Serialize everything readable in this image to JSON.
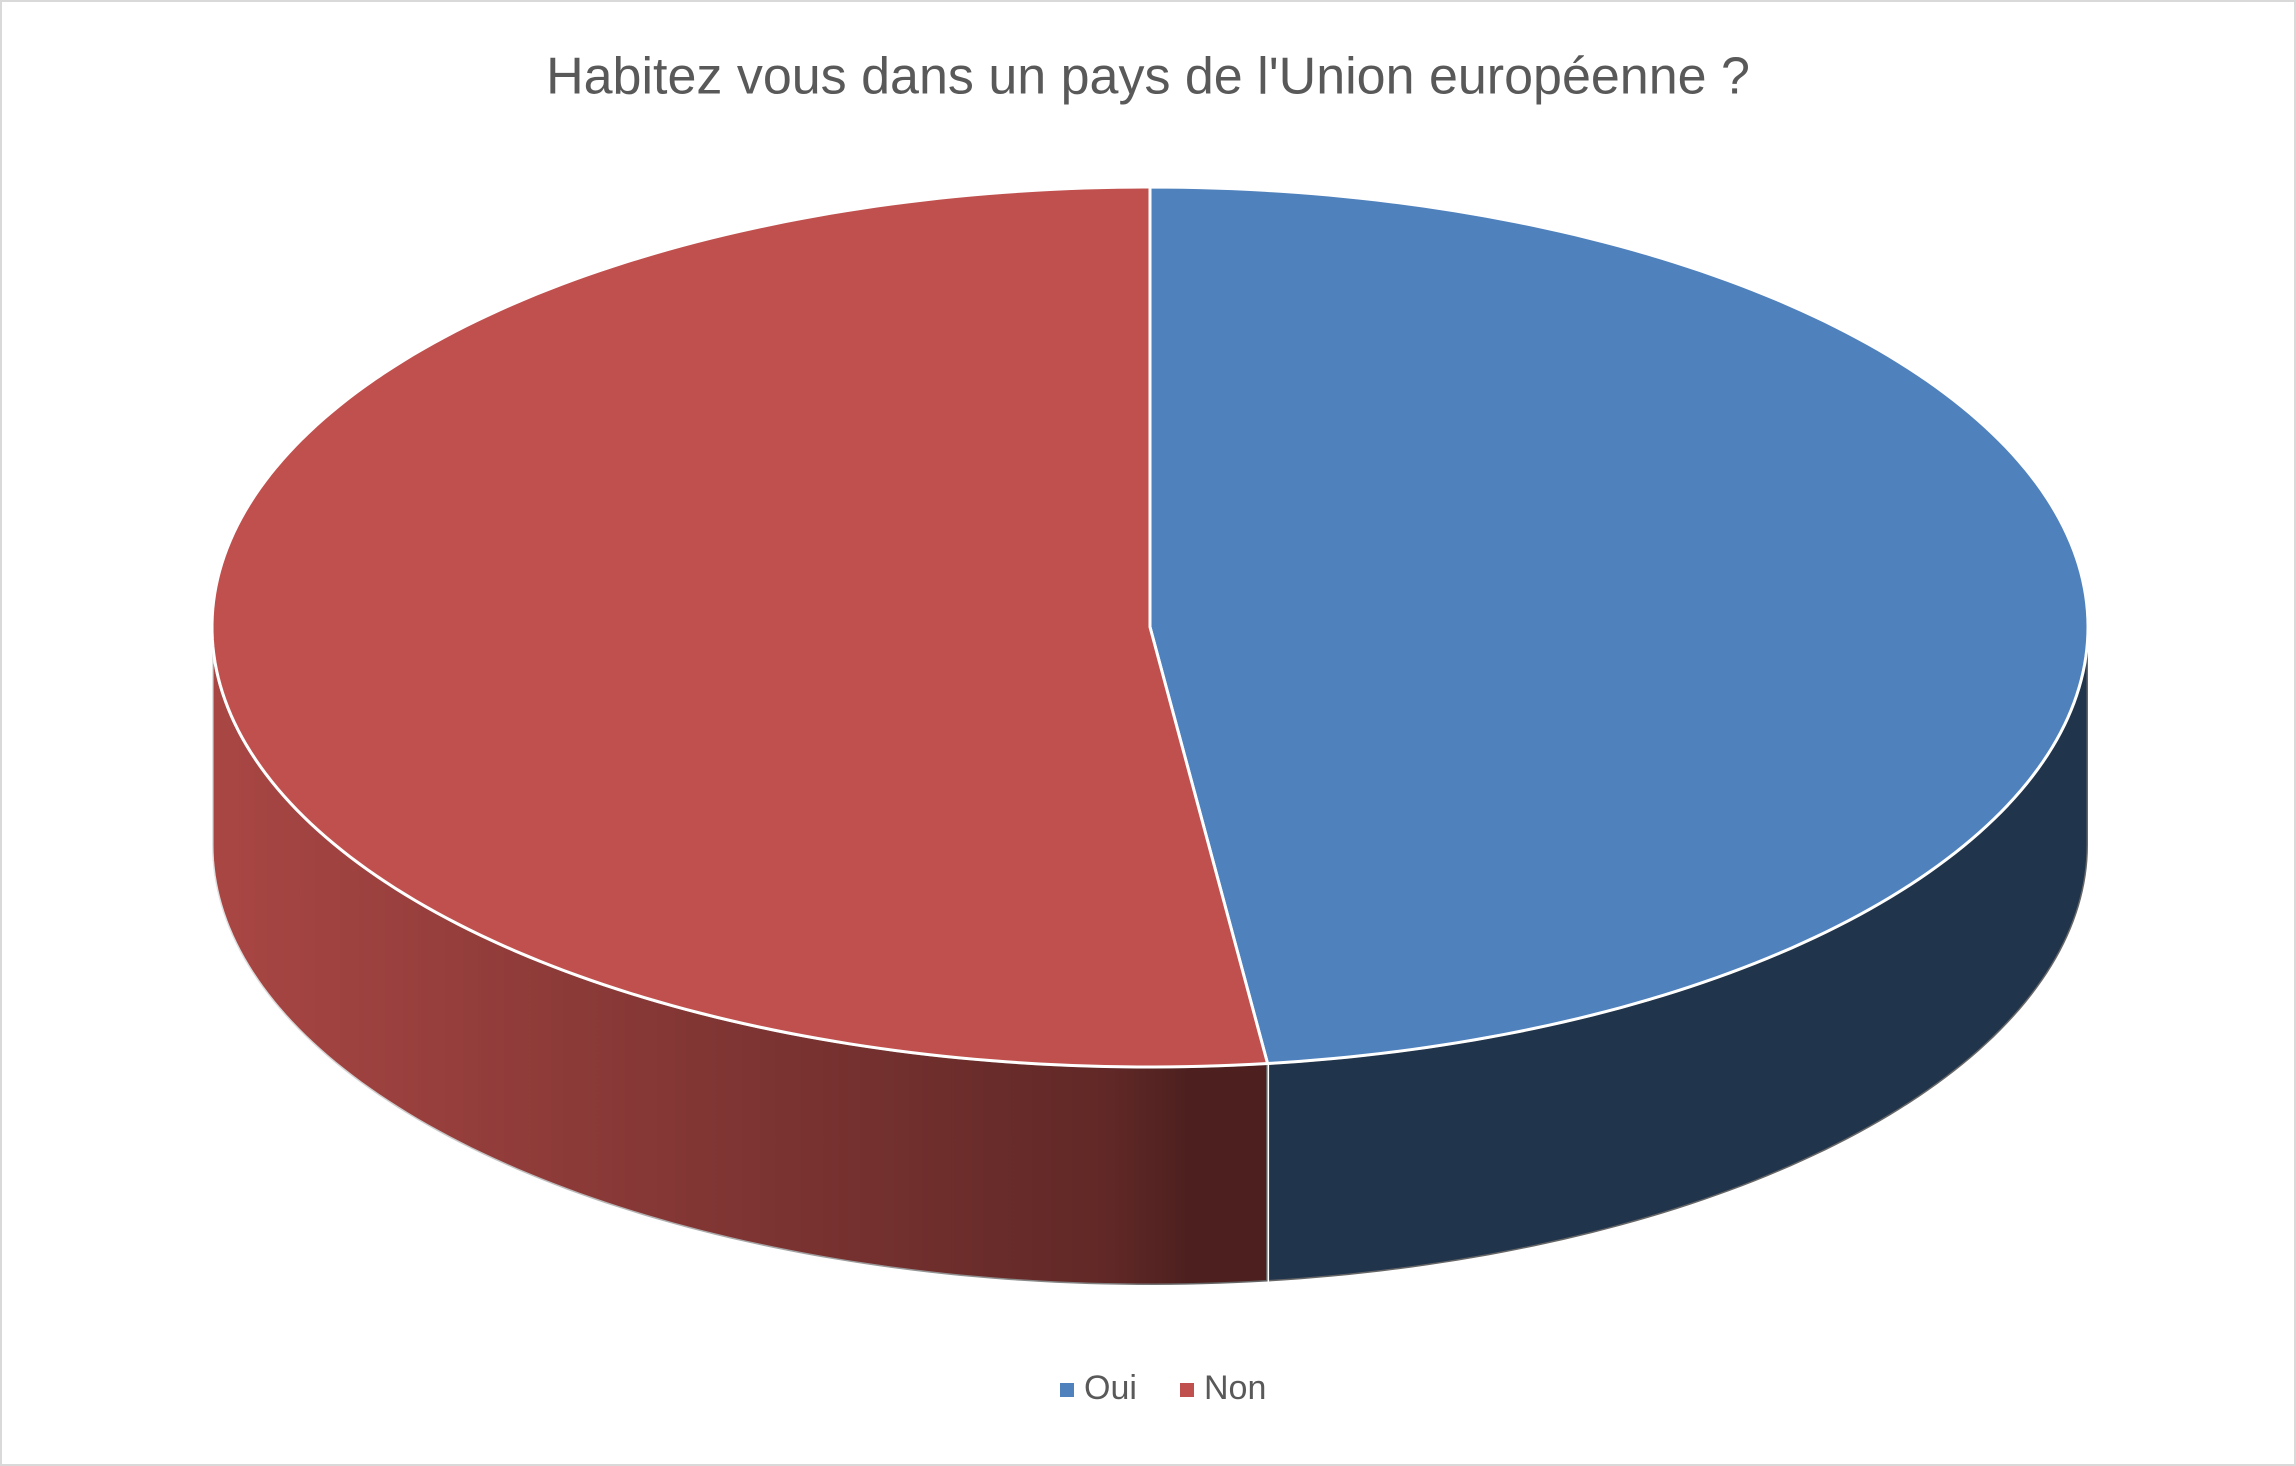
{
  "chart_data": {
    "type": "pie",
    "title": "Habitez vous dans un pays de l'Union européenne ?",
    "categories": [
      "Oui",
      "Non"
    ],
    "values": [
      48,
      52
    ],
    "colors": [
      "#4f81bd",
      "#c0504d"
    ],
    "legend": "bottom"
  }
}
